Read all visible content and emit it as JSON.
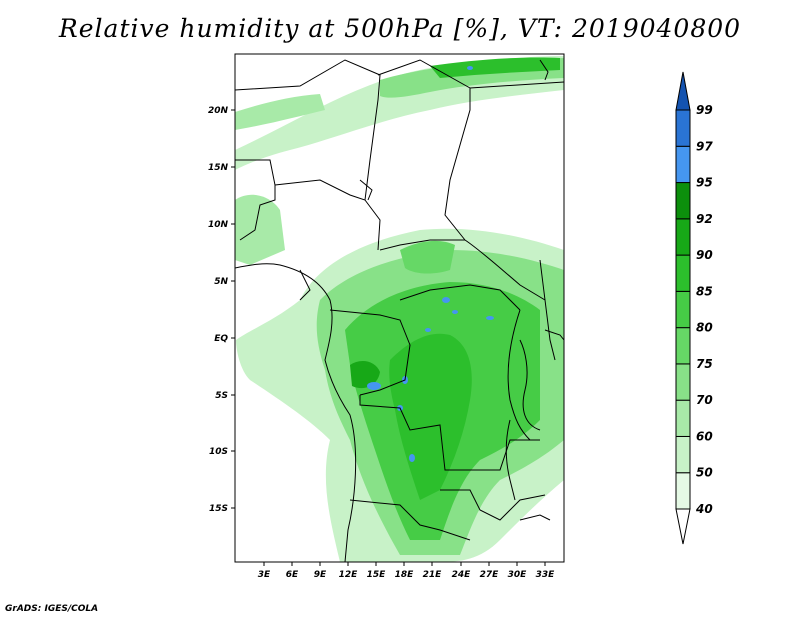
{
  "title": "Relative humidity at 500hPa [%], VT: 2019040800",
  "credit": "GrADS: IGES/COLA",
  "map": {
    "lat_labels": [
      "20N",
      "15N",
      "10N",
      "5N",
      "EQ",
      "5S",
      "10S",
      "15S"
    ],
    "lon_labels": [
      "3E",
      "6E",
      "9E",
      "12E",
      "15E",
      "18E",
      "21E",
      "24E",
      "27E",
      "30E",
      "33E"
    ]
  },
  "colorbar": {
    "levels": [
      "40",
      "50",
      "60",
      "70",
      "75",
      "80",
      "85",
      "90",
      "92",
      "95",
      "97",
      "99"
    ],
    "colors": [
      "#ffffff",
      "#e5f9e5",
      "#c8f2c8",
      "#a8eaa8",
      "#88e188",
      "#66d866",
      "#46cc46",
      "#2cbf2c",
      "#17a817",
      "#0c8f0c",
      "#4596f0",
      "#2a74d4",
      "#1453b0"
    ]
  }
}
